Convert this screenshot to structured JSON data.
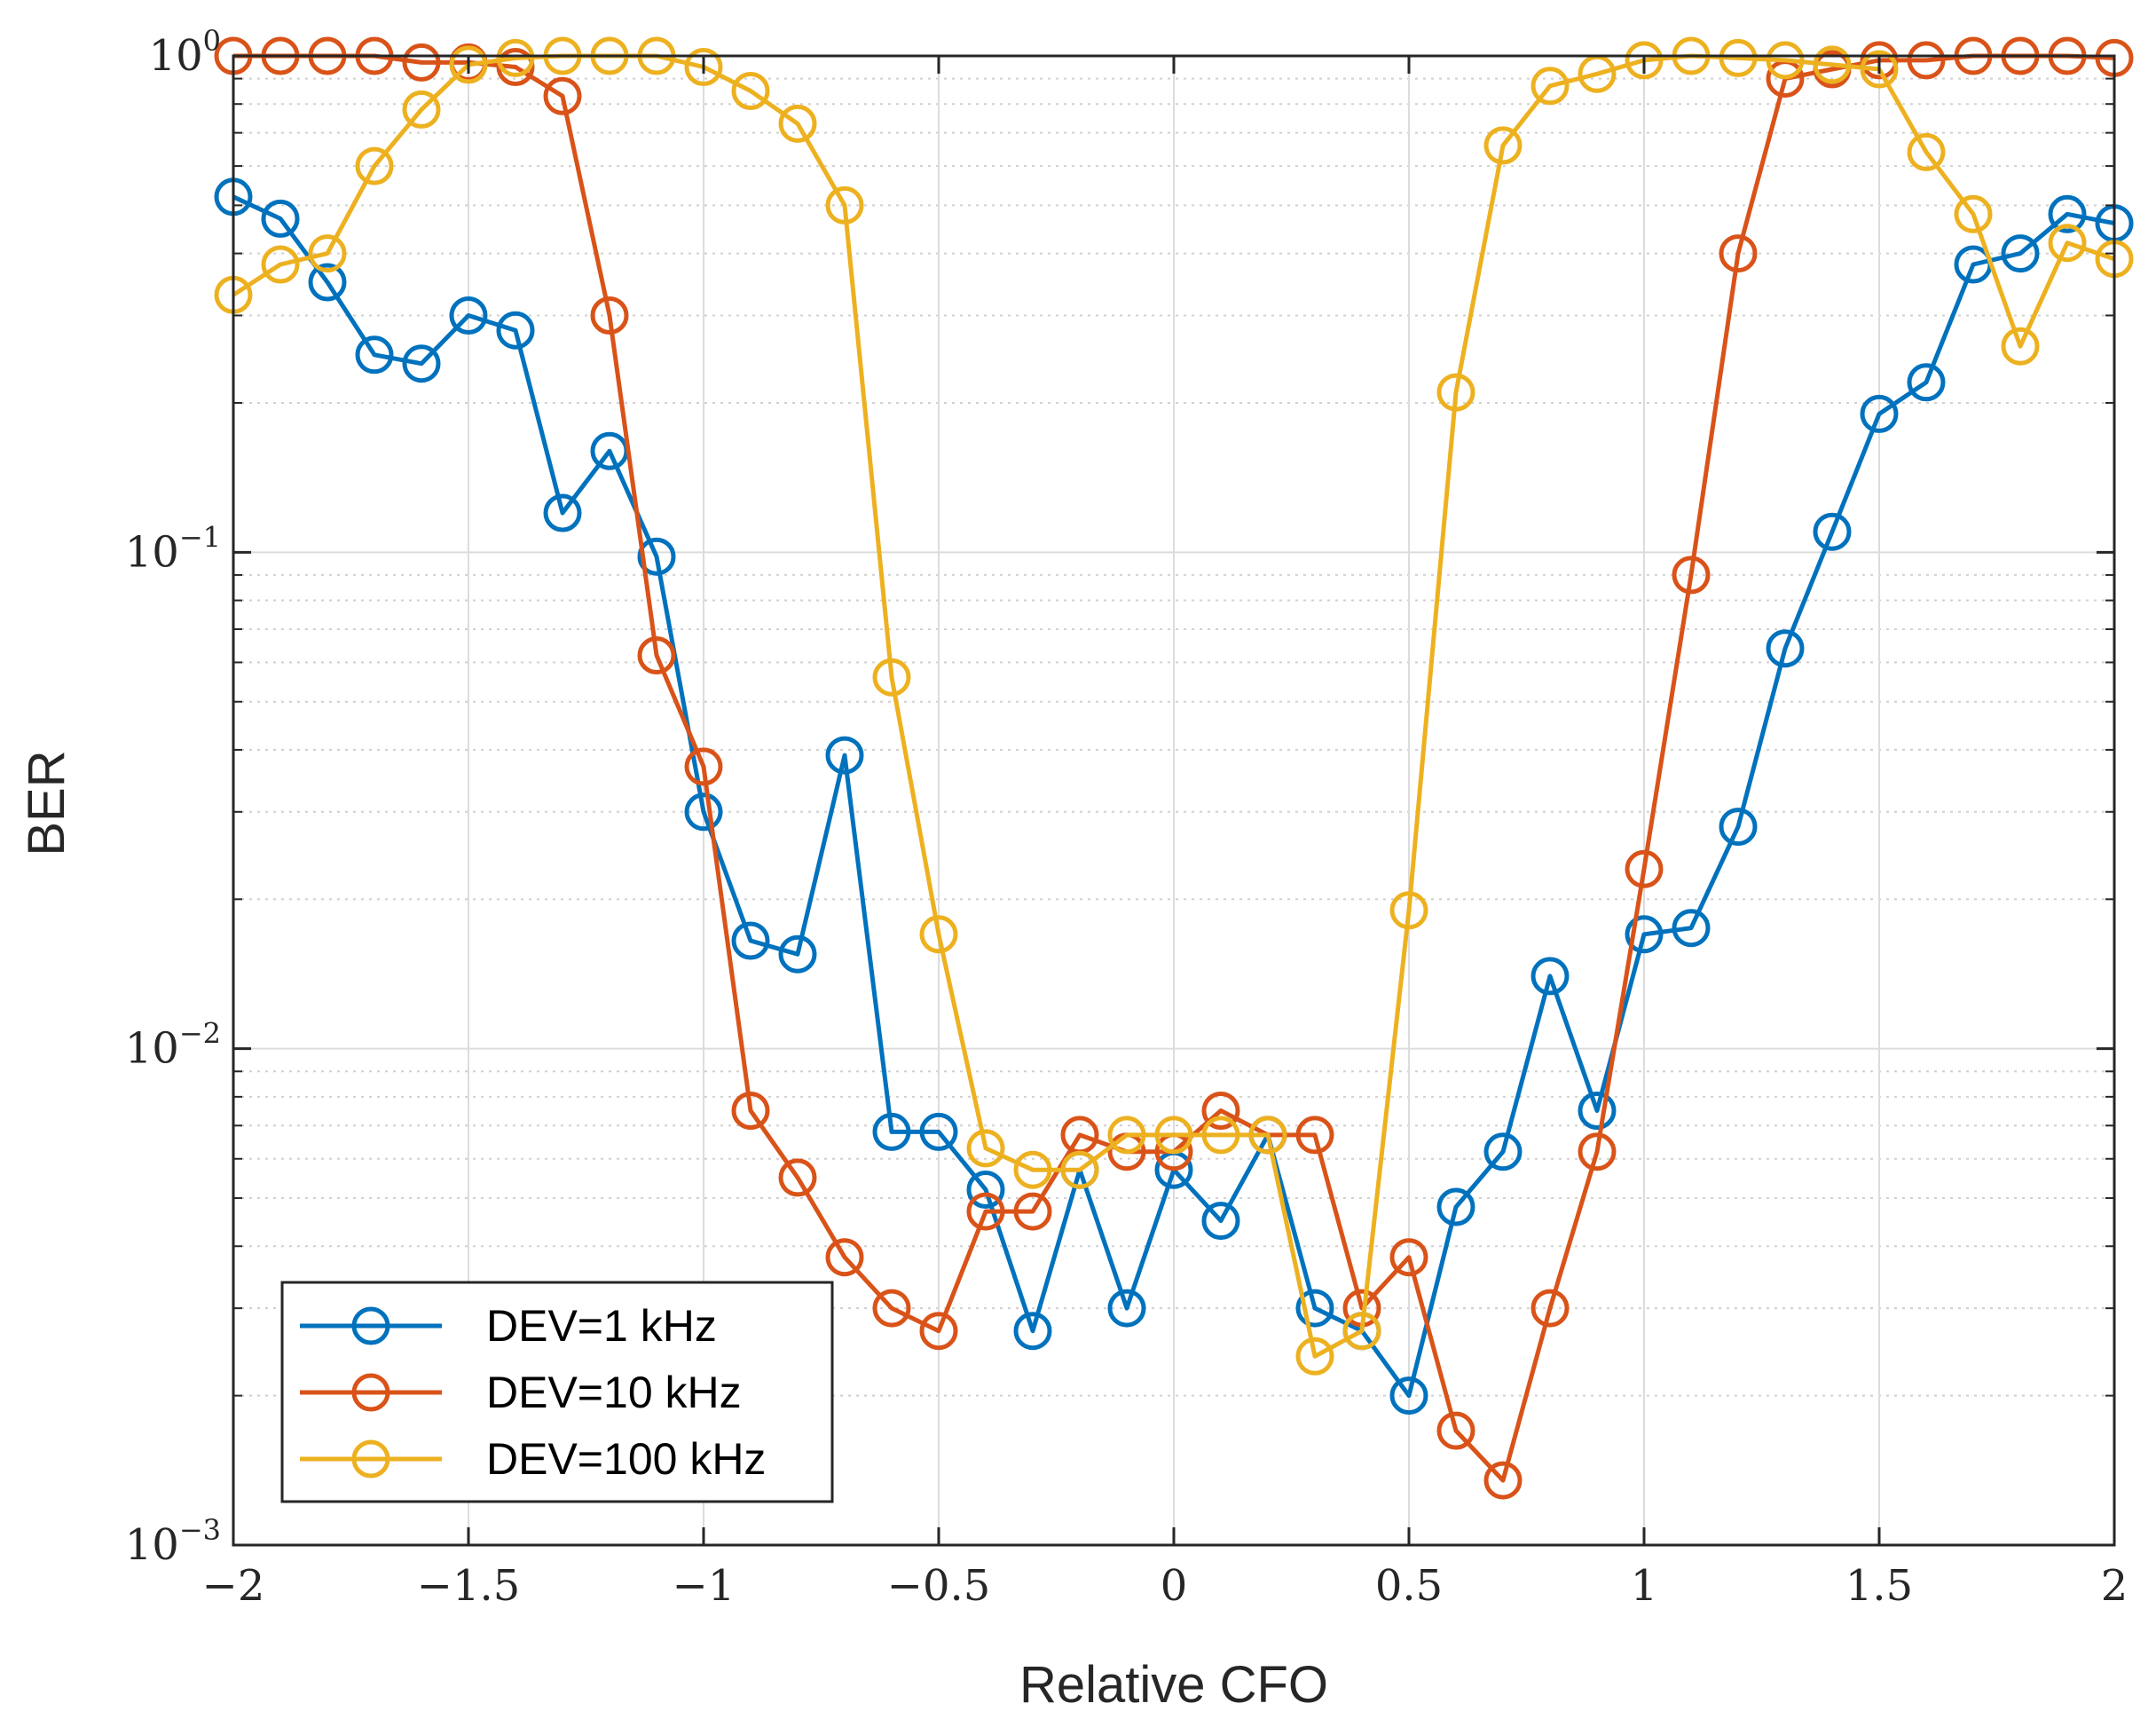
{
  "chart_data": {
    "type": "line",
    "title": "",
    "xlabel": "Relative CFO",
    "ylabel": "BER",
    "xlim": [
      -2,
      2
    ],
    "ylim": [
      0.001,
      1
    ],
    "yscale": "log",
    "grid": true,
    "legend_position": "bottom-left",
    "x_ticks": [
      -2,
      -1.5,
      -1,
      -0.5,
      0,
      0.5,
      1,
      1.5,
      2
    ],
    "x_tick_labels": [
      "−2",
      "−1.5",
      "−1",
      "−0.5",
      "0",
      "0.5",
      "1",
      "1.5",
      "2"
    ],
    "y_ticks": [
      {
        "value": 1,
        "base": "10",
        "exp": "0"
      },
      {
        "value": 0.1,
        "base": "10",
        "exp": "−1"
      },
      {
        "value": 0.01,
        "base": "10",
        "exp": "−2"
      },
      {
        "value": 0.001,
        "base": "10",
        "exp": "−3"
      }
    ],
    "x": [
      -2,
      -1.9,
      -1.8,
      -1.7,
      -1.6,
      -1.5,
      -1.4,
      -1.3,
      -1.2,
      -1.1,
      -1,
      -0.9,
      -0.8,
      -0.7,
      -0.6,
      -0.5,
      -0.4,
      -0.3,
      -0.2,
      -0.1,
      0,
      0.1,
      0.2,
      0.3,
      0.4,
      0.5,
      0.6,
      0.7,
      0.8,
      0.9,
      1,
      1.1,
      1.2,
      1.3,
      1.4,
      1.5,
      1.6,
      1.7,
      1.8,
      1.9,
      2
    ],
    "series": [
      {
        "name": "DEV=1 kHz",
        "color": "#0072BD",
        "values": [
          0.52,
          0.47,
          0.35,
          0.25,
          0.24,
          0.3,
          0.28,
          0.12,
          0.16,
          0.098,
          0.03,
          0.0165,
          0.0155,
          0.039,
          0.0068,
          0.0068,
          0.0052,
          0.0027,
          0.0057,
          0.003,
          0.0057,
          0.0045,
          0.0067,
          0.003,
          0.0027,
          0.002,
          0.0048,
          0.0062,
          0.014,
          0.0075,
          0.017,
          0.0175,
          0.028,
          0.064,
          0.11,
          0.19,
          0.22,
          0.38,
          0.4,
          0.48,
          0.46
        ]
      },
      {
        "name": "DEV=10 kHz",
        "color": "#D95319",
        "values": [
          1.0,
          1.0,
          1.0,
          1.0,
          0.97,
          0.97,
          0.95,
          0.83,
          0.3,
          0.062,
          0.037,
          0.0075,
          0.0055,
          0.0038,
          0.003,
          0.0027,
          0.0047,
          0.0047,
          0.0067,
          0.0062,
          0.0062,
          0.0075,
          0.0067,
          0.0067,
          0.003,
          0.0038,
          0.0017,
          0.00135,
          0.003,
          0.0062,
          0.023,
          0.09,
          0.4,
          0.9,
          0.94,
          0.98,
          0.98,
          1.0,
          1.0,
          1.0,
          0.99
        ]
      },
      {
        "name": "DEV=100 kHz",
        "color": "#EDB120",
        "values": [
          0.33,
          0.38,
          0.4,
          0.6,
          0.78,
          0.96,
          0.99,
          1.0,
          1.0,
          1.0,
          0.95,
          0.85,
          0.73,
          0.5,
          0.056,
          0.017,
          0.0063,
          0.0057,
          0.0057,
          0.0067,
          0.0067,
          0.0067,
          0.0067,
          0.0024,
          0.0027,
          0.019,
          0.21,
          0.66,
          0.87,
          0.92,
          0.98,
          1.0,
          0.99,
          0.98,
          0.96,
          0.94,
          0.64,
          0.48,
          0.26,
          0.42,
          0.39
        ]
      }
    ]
  }
}
